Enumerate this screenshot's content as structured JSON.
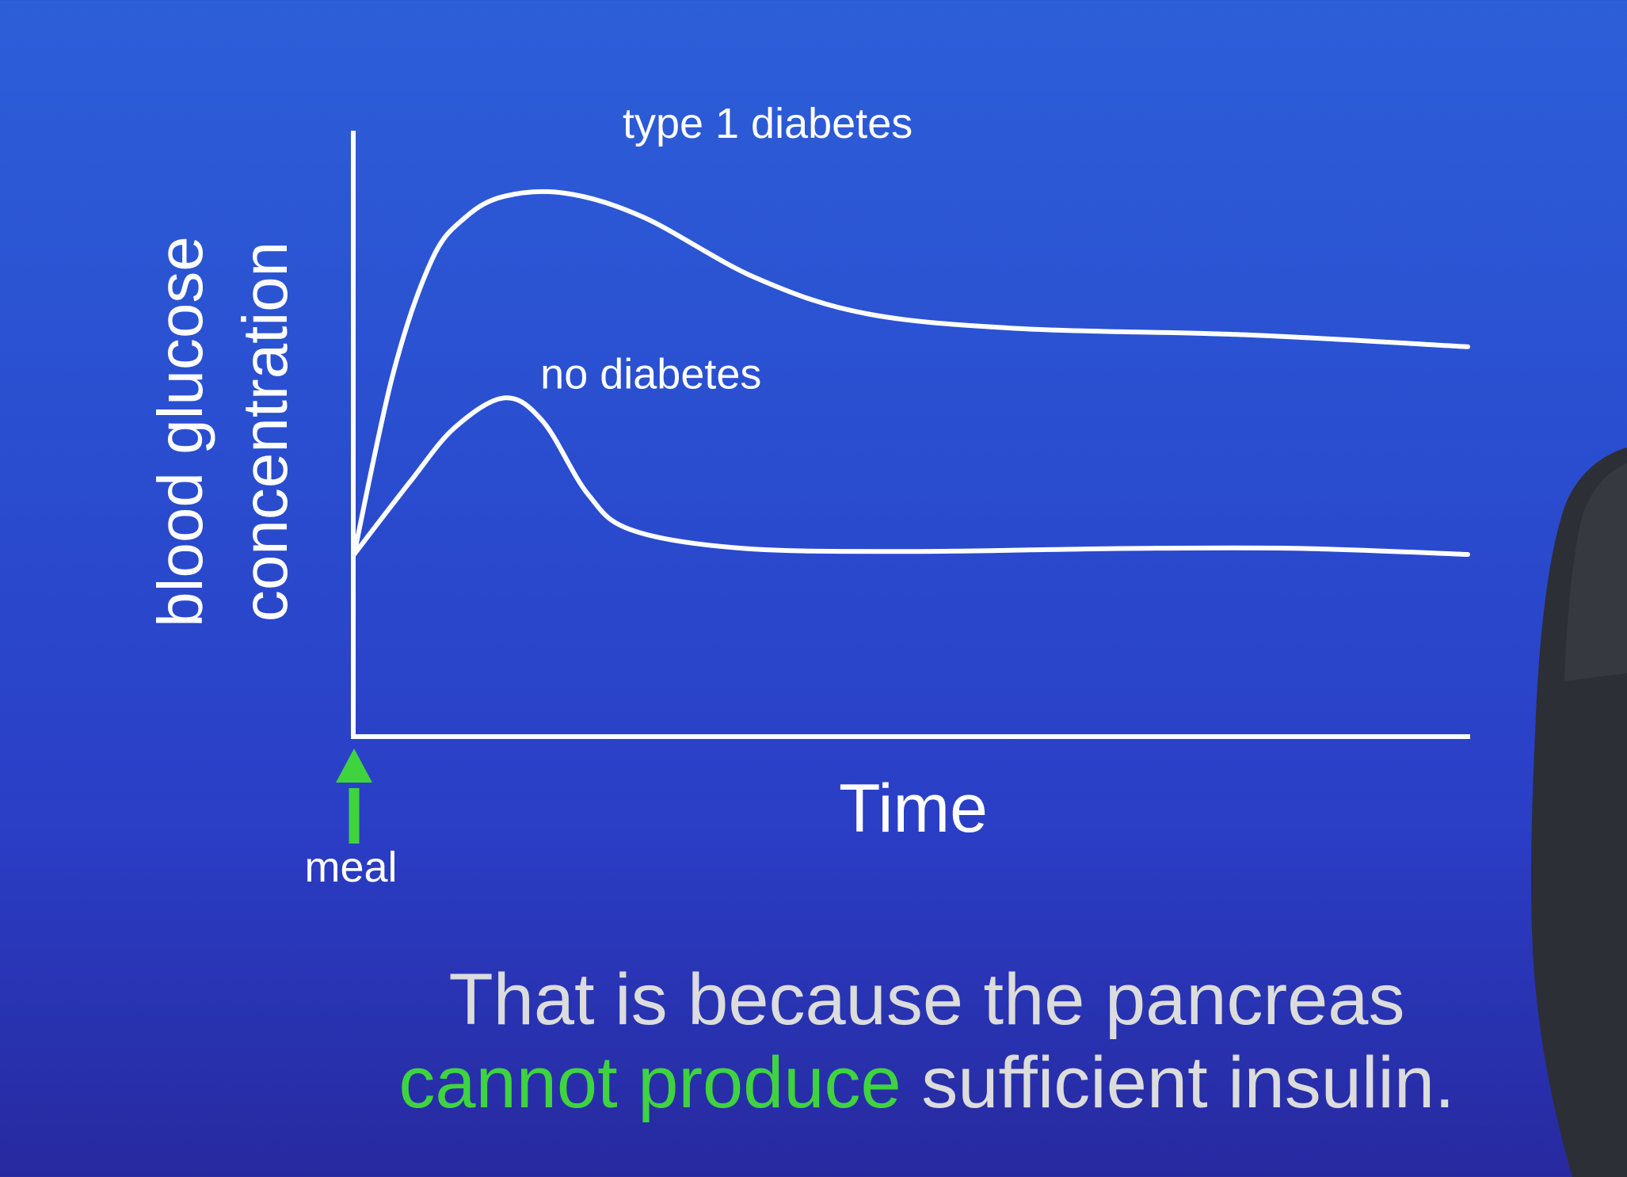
{
  "chart_data": {
    "type": "line",
    "title": "",
    "xlabel": "Time",
    "ylabel": "blood glucose concentration",
    "ylabel_lines": [
      "blood glucose",
      "concentration"
    ],
    "x_marker": {
      "label": "meal",
      "x": 0,
      "color": "#3fd43f"
    },
    "x_range": [
      0,
      10
    ],
    "y_range": [
      0,
      10
    ],
    "series": [
      {
        "name": "type 1 diabetes",
        "color": "#ffffff",
        "points": [
          [
            0,
            3.0
          ],
          [
            0.35,
            6.0
          ],
          [
            0.7,
            7.9
          ],
          [
            1.0,
            8.6
          ],
          [
            1.35,
            8.95
          ],
          [
            1.9,
            9.0
          ],
          [
            2.6,
            8.6
          ],
          [
            3.6,
            7.6
          ],
          [
            4.6,
            7.0
          ],
          [
            6.0,
            6.75
          ],
          [
            8.0,
            6.65
          ],
          [
            10.0,
            6.45
          ]
        ]
      },
      {
        "name": "no diabetes",
        "color": "#ffffff",
        "points": [
          [
            0,
            3.0
          ],
          [
            0.5,
            4.2
          ],
          [
            0.9,
            5.1
          ],
          [
            1.35,
            5.6
          ],
          [
            1.7,
            5.2
          ],
          [
            2.1,
            4.0
          ],
          [
            2.5,
            3.4
          ],
          [
            3.5,
            3.1
          ],
          [
            5.0,
            3.05
          ],
          [
            7.0,
            3.1
          ],
          [
            8.5,
            3.1
          ],
          [
            10.0,
            3.0
          ]
        ]
      }
    ]
  },
  "caption": {
    "line1": "That is because the pancreas",
    "line2_highlight": "cannot produce",
    "line2_rest": " sufficient insulin."
  }
}
